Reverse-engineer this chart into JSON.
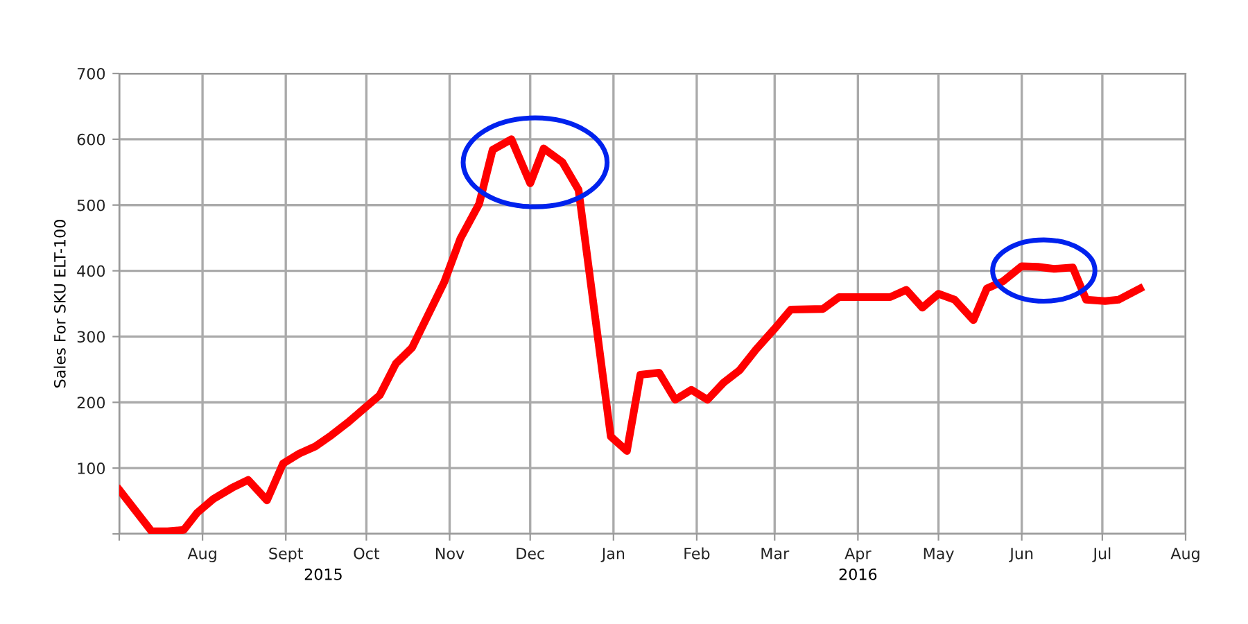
{
  "chart_data": {
    "type": "line",
    "ylabel": "Sales For SKU ELT-100",
    "x": [
      "2015-07-01",
      "2015-07-13",
      "2015-07-19",
      "2015-07-25",
      "2015-07-30",
      "2015-08-05",
      "2015-08-12",
      "2015-08-18",
      "2015-08-25",
      "2015-08-31",
      "2015-09-06",
      "2015-09-12",
      "2015-09-18",
      "2015-09-24",
      "2015-09-30",
      "2015-10-06",
      "2015-10-12",
      "2015-10-18",
      "2015-10-24",
      "2015-10-30",
      "2015-11-05",
      "2015-11-12",
      "2015-11-17",
      "2015-11-24",
      "2015-12-01",
      "2015-12-06",
      "2015-12-13",
      "2015-12-19",
      "2015-12-31",
      "2016-01-06",
      "2016-01-11",
      "2016-01-18",
      "2016-01-24",
      "2016-01-30",
      "2016-02-05",
      "2016-02-11",
      "2016-02-17",
      "2016-02-23",
      "2016-03-01",
      "2016-03-07",
      "2016-03-19",
      "2016-03-25",
      "2016-04-13",
      "2016-04-19",
      "2016-04-25",
      "2016-05-01",
      "2016-05-07",
      "2016-05-14",
      "2016-05-19",
      "2016-05-25",
      "2016-06-01",
      "2016-06-07",
      "2016-06-13",
      "2016-06-20",
      "2016-06-25",
      "2016-07-02",
      "2016-07-07",
      "2016-07-15"
    ],
    "series": [
      {
        "color": "#ff0000",
        "values": [
          67,
          4,
          4,
          6,
          32,
          53,
          70,
          82,
          51,
          107,
          122,
          133,
          150,
          169,
          190,
          211,
          259,
          283,
          333,
          383,
          449,
          502,
          584,
          600,
          533,
          586,
          565,
          523,
          148,
          126,
          242,
          245,
          204,
          219,
          204,
          230,
          249,
          280,
          312,
          341,
          342,
          360,
          360,
          371,
          344,
          365,
          356,
          325,
          373,
          384,
          407,
          406,
          403,
          405,
          356,
          354,
          356,
          373
        ]
      }
    ],
    "xlim": [
      "2015-07-01",
      "2016-08-01"
    ],
    "xticks": [
      {
        "value": "2015-07-01",
        "label": null
      },
      {
        "value": "2015-08-01",
        "label": "Aug"
      },
      {
        "value": "2015-09-01",
        "label": "Sept"
      },
      {
        "value": "2015-10-01",
        "label": "Oct"
      },
      {
        "value": "2015-11-01",
        "label": "Nov"
      },
      {
        "value": "2015-12-01",
        "label": "Dec"
      },
      {
        "value": "2016-01-01",
        "label": "Jan"
      },
      {
        "value": "2016-02-01",
        "label": "Feb"
      },
      {
        "value": "2016-03-01",
        "label": "Mar"
      },
      {
        "value": "2016-04-01",
        "label": "Apr"
      },
      {
        "value": "2016-05-01",
        "label": "May"
      },
      {
        "value": "2016-06-01",
        "label": "Jun"
      },
      {
        "value": "2016-07-01",
        "label": "Jul"
      },
      {
        "value": "2016-08-01",
        "label": "Aug"
      }
    ],
    "x2lim": [
      "2015-07-01",
      "2016-08-01"
    ],
    "x2ticks": [
      {
        "value": "2015-09-15",
        "label": "2015"
      },
      {
        "value": "2016-04-01",
        "label": "2016"
      }
    ],
    "ylim": [
      0,
      700
    ],
    "yticks": [
      {
        "value": 0,
        "label": null
      },
      100,
      200,
      300,
      400,
      500,
      600,
      700
    ],
    "grid": true,
    "marker": "none",
    "line_style": "solid"
  }
}
